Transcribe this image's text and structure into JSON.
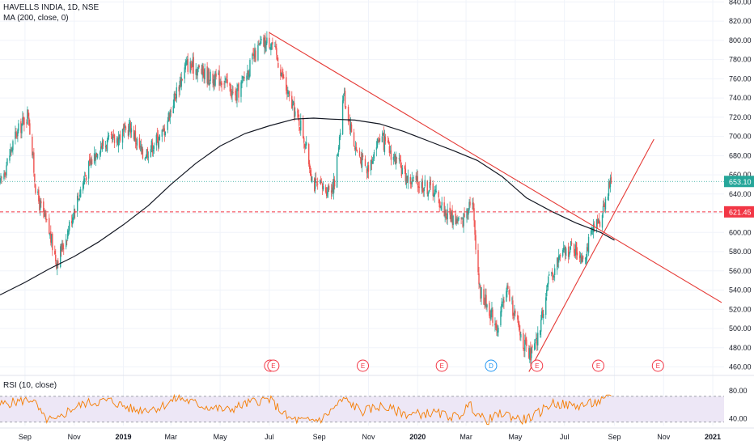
{
  "header": {
    "title": "HAVELLS INDIA, 1D, NSE",
    "ma_label": "MA (200, close, 0)",
    "rsi_label": "RSI (10, close)"
  },
  "colors": {
    "up": "#26a69a",
    "down": "#ef5350",
    "trendline": "#e53935",
    "ma": "#131722",
    "last_price": "#26a69a",
    "level": "#f23645",
    "rsi_line": "#f57c00",
    "rsi_band": "#ede7f6",
    "event_earnings": "#f23645",
    "event_dividend": "#2196f3"
  },
  "chart_data": [
    {
      "type": "candlestick",
      "title": "HAVELLS INDIA, 1D, NSE",
      "xlabel": "",
      "ylabel": "",
      "x_range": [
        "2018-08-01",
        "2021-01-15"
      ],
      "ylim": [
        452,
        842
      ],
      "y_ticks": [
        460,
        480,
        500,
        520,
        540,
        560,
        580,
        600,
        620,
        640,
        660,
        680,
        700,
        720,
        740,
        760,
        780,
        800,
        820,
        840
      ],
      "y_tick_labels": [
        "460.00",
        "480.00",
        "500.00",
        "520.00",
        "540.00",
        "560.00",
        "580.00",
        "600.00",
        "620.00",
        "640.00",
        "660.00",
        "680.00",
        "700.00",
        "720.00",
        "740.00",
        "760.00",
        "780.00",
        "800.00",
        "820.00",
        "840.00"
      ],
      "x_ticks": [
        {
          "date": "2018-09-01",
          "label": "Sep",
          "bold": false
        },
        {
          "date": "2018-11-01",
          "label": "Nov",
          "bold": false
        },
        {
          "date": "2019-01-01",
          "label": "2019",
          "bold": true
        },
        {
          "date": "2019-03-01",
          "label": "Mar",
          "bold": false
        },
        {
          "date": "2019-05-01",
          "label": "May",
          "bold": false
        },
        {
          "date": "2019-07-01",
          "label": "Jul",
          "bold": false
        },
        {
          "date": "2019-09-01",
          "label": "Sep",
          "bold": false
        },
        {
          "date": "2019-11-01",
          "label": "Nov",
          "bold": false
        },
        {
          "date": "2020-01-01",
          "label": "2020",
          "bold": true
        },
        {
          "date": "2020-03-01",
          "label": "Mar",
          "bold": false
        },
        {
          "date": "2020-05-01",
          "label": "May",
          "bold": false
        },
        {
          "date": "2020-07-01",
          "label": "Jul",
          "bold": false
        },
        {
          "date": "2020-09-01",
          "label": "Sep",
          "bold": false
        },
        {
          "date": "2020-11-01",
          "label": "Nov",
          "bold": false
        },
        {
          "date": "2021-01-01",
          "label": "2021",
          "bold": true
        }
      ],
      "price_path": [
        [
          "2018-08-01",
          650
        ],
        [
          "2018-08-20",
          700
        ],
        [
          "2018-09-05",
          725
        ],
        [
          "2018-09-15",
          640
        ],
        [
          "2018-10-01",
          600
        ],
        [
          "2018-10-10",
          570
        ],
        [
          "2018-10-20",
          590
        ],
        [
          "2018-11-01",
          625
        ],
        [
          "2018-11-15",
          660
        ],
        [
          "2018-12-01",
          690
        ],
        [
          "2018-12-20",
          695
        ],
        [
          "2019-01-10",
          710
        ],
        [
          "2019-01-25",
          680
        ],
        [
          "2019-02-05",
          690
        ],
        [
          "2019-02-20",
          705
        ],
        [
          "2019-03-05",
          740
        ],
        [
          "2019-03-20",
          775
        ],
        [
          "2019-04-05",
          770
        ],
        [
          "2019-04-20",
          760
        ],
        [
          "2019-05-05",
          760
        ],
        [
          "2019-05-20",
          740
        ],
        [
          "2019-06-05",
          770
        ],
        [
          "2019-06-20",
          795
        ],
        [
          "2019-07-03",
          800
        ],
        [
          "2019-07-15",
          770
        ],
        [
          "2019-07-25",
          740
        ],
        [
          "2019-08-10",
          710
        ],
        [
          "2019-08-25",
          650
        ],
        [
          "2019-09-08",
          645
        ],
        [
          "2019-09-20",
          650
        ],
        [
          "2019-10-01",
          745
        ],
        [
          "2019-10-15",
          690
        ],
        [
          "2019-10-30",
          665
        ],
        [
          "2019-11-15",
          700
        ],
        [
          "2019-12-01",
          680
        ],
        [
          "2019-12-20",
          655
        ],
        [
          "2020-01-05",
          650
        ],
        [
          "2020-01-20",
          645
        ],
        [
          "2020-02-05",
          620
        ],
        [
          "2020-02-25",
          610
        ],
        [
          "2020-03-08",
          640
        ],
        [
          "2020-03-18",
          540
        ],
        [
          "2020-03-30",
          520
        ],
        [
          "2020-04-10",
          500
        ],
        [
          "2020-04-20",
          545
        ],
        [
          "2020-05-05",
          500
        ],
        [
          "2020-05-18",
          470
        ],
        [
          "2020-05-28",
          485
        ],
        [
          "2020-06-10",
          545
        ],
        [
          "2020-06-25",
          575
        ],
        [
          "2020-07-10",
          585
        ],
        [
          "2020-07-25",
          575
        ],
        [
          "2020-08-05",
          600
        ],
        [
          "2020-08-15",
          615
        ],
        [
          "2020-08-22",
          640
        ],
        [
          "2020-08-28",
          653
        ]
      ],
      "last_price": 653.1,
      "last_price_label": "653.10",
      "horizontal_level": 621.45,
      "horizontal_level_label": "621.45",
      "trendlines": [
        {
          "name": "descending resistance",
          "from": [
            "2019-07-01",
            808
          ],
          "to": [
            "2021-01-12",
            527
          ]
        },
        {
          "name": "ascending support",
          "from": [
            "2020-05-18",
            455
          ],
          "to": [
            "2020-10-20",
            697
          ]
        }
      ],
      "series": [
        {
          "name": "MA (200, close, 0)",
          "values": [
            [
              "2018-08-01",
              535
            ],
            [
              "2018-09-01",
              548
            ],
            [
              "2018-10-01",
              562
            ],
            [
              "2018-11-01",
              575
            ],
            [
              "2018-12-01",
              590
            ],
            [
              "2019-01-01",
              608
            ],
            [
              "2019-02-01",
              628
            ],
            [
              "2019-03-01",
              650
            ],
            [
              "2019-04-01",
              672
            ],
            [
              "2019-05-01",
              690
            ],
            [
              "2019-06-01",
              703
            ],
            [
              "2019-07-01",
              711
            ],
            [
              "2019-08-01",
              718
            ],
            [
              "2019-08-25",
              719
            ],
            [
              "2019-09-15",
              718
            ],
            [
              "2019-10-15",
              717
            ],
            [
              "2019-11-15",
              713
            ],
            [
              "2019-12-15",
              705
            ],
            [
              "2020-01-15",
              695
            ],
            [
              "2020-02-15",
              685
            ],
            [
              "2020-03-15",
              675
            ],
            [
              "2020-04-15",
              658
            ],
            [
              "2020-05-15",
              636
            ],
            [
              "2020-06-15",
              622
            ],
            [
              "2020-07-15",
              610
            ],
            [
              "2020-08-15",
              600
            ],
            [
              "2020-09-01",
              592
            ]
          ]
        }
      ],
      "events": [
        {
          "date": "2019-07-02",
          "kind": "E"
        },
        {
          "date": "2019-07-06",
          "kind": "E"
        },
        {
          "date": "2019-10-25",
          "kind": "E"
        },
        {
          "date": "2020-01-31",
          "kind": "E"
        },
        {
          "date": "2020-04-01",
          "kind": "D"
        },
        {
          "date": "2020-05-28",
          "kind": "E"
        },
        {
          "date": "2020-08-12",
          "kind": "E"
        },
        {
          "date": "2020-10-25",
          "kind": "E"
        }
      ]
    },
    {
      "type": "line",
      "title": "RSI (10, close)",
      "ylim": [
        30,
        95
      ],
      "y_ticks": [
        40,
        80
      ],
      "y_tick_labels": [
        "40.00",
        "80.00"
      ],
      "band": [
        35,
        72
      ],
      "series": [
        {
          "name": "RSI (10, close)",
          "values": [
            [
              "2018-08-01",
              60
            ],
            [
              "2018-09-10",
              68
            ],
            [
              "2018-09-25",
              40
            ],
            [
              "2018-10-10",
              36
            ],
            [
              "2018-10-25",
              52
            ],
            [
              "2018-11-15",
              62
            ],
            [
              "2018-12-15",
              66
            ],
            [
              "2019-01-15",
              52
            ],
            [
              "2019-02-15",
              56
            ],
            [
              "2019-03-10",
              70
            ],
            [
              "2019-04-10",
              58
            ],
            [
              "2019-05-10",
              52
            ],
            [
              "2019-06-10",
              64
            ],
            [
              "2019-07-01",
              68
            ],
            [
              "2019-07-25",
              40
            ],
            [
              "2019-08-15",
              36
            ],
            [
              "2019-09-05",
              40
            ],
            [
              "2019-10-01",
              68
            ],
            [
              "2019-10-25",
              50
            ],
            [
              "2019-11-15",
              58
            ],
            [
              "2019-12-20",
              46
            ],
            [
              "2020-01-20",
              48
            ],
            [
              "2020-02-20",
              42
            ],
            [
              "2020-03-05",
              60
            ],
            [
              "2020-03-25",
              36
            ],
            [
              "2020-04-15",
              48
            ],
            [
              "2020-05-10",
              38
            ],
            [
              "2020-05-25",
              44
            ],
            [
              "2020-06-15",
              62
            ],
            [
              "2020-07-15",
              58
            ],
            [
              "2020-08-05",
              62
            ],
            [
              "2020-08-20",
              66
            ],
            [
              "2020-08-28",
              72
            ]
          ]
        }
      ]
    }
  ]
}
